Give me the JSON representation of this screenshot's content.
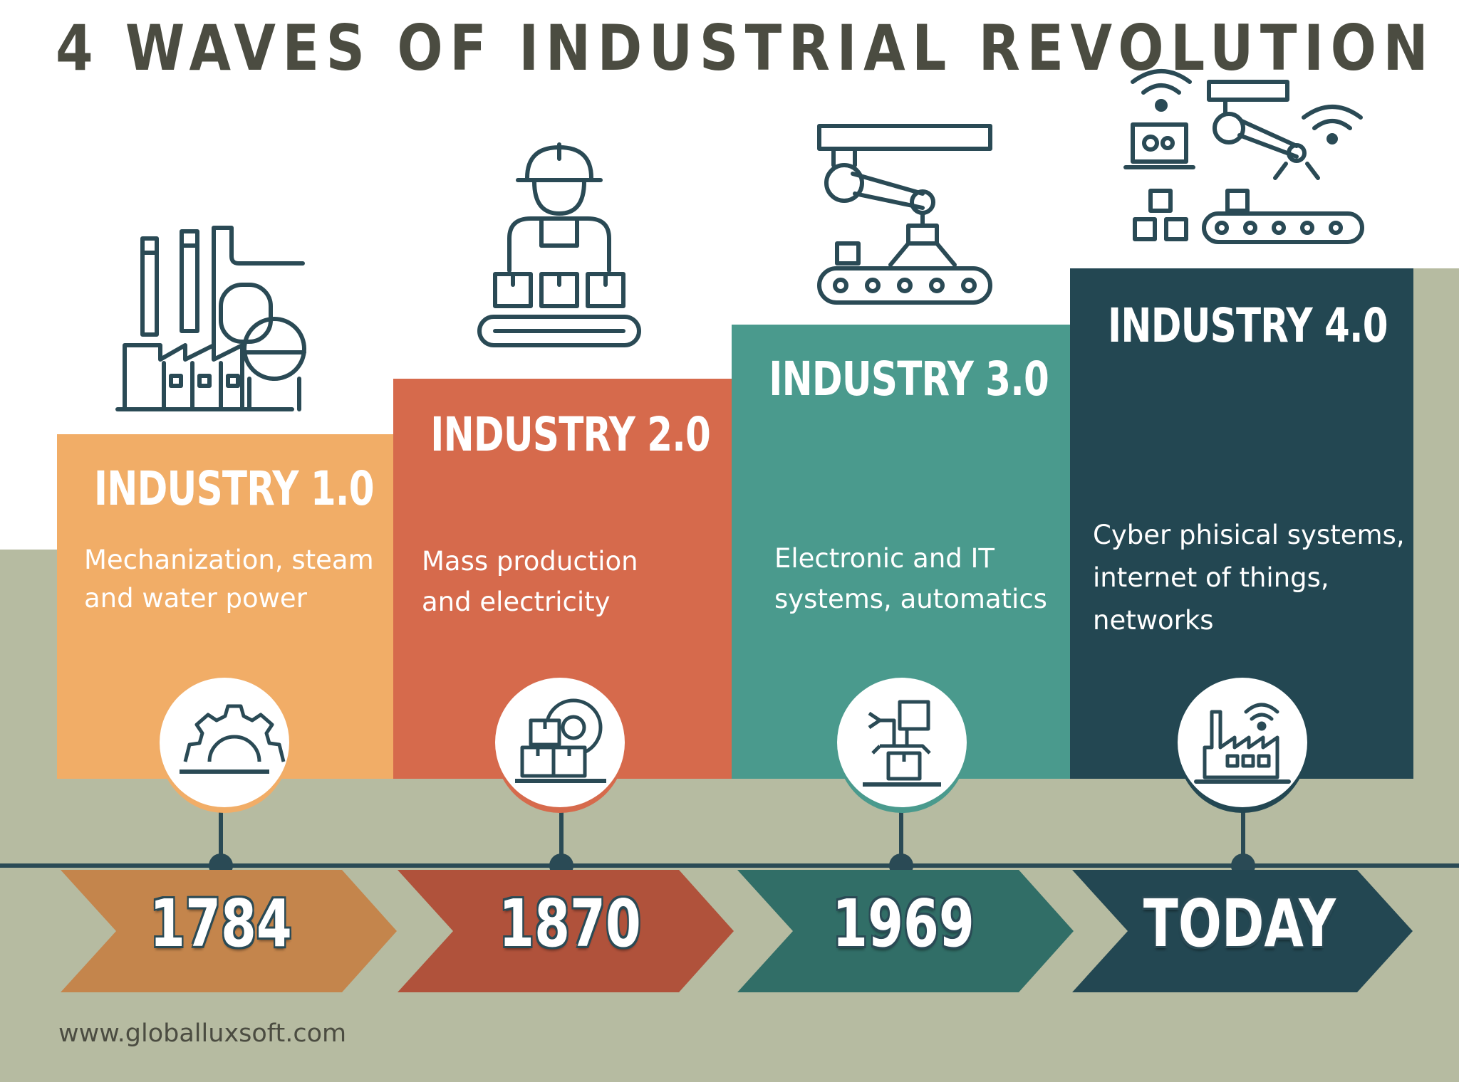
{
  "title": "4 WAVES OF INDUSTRIAL REVOLUTION",
  "colors": {
    "industry_1": "#f1ad67",
    "industry_2": "#d66a4c",
    "industry_3": "#4a9a8d",
    "industry_4": "#234752",
    "timeline_1": "#c4854c",
    "timeline_2": "#b0523b",
    "timeline_3": "#316e67",
    "timeline_4": "#234752",
    "background_band": "#b6bba1",
    "line": "#2a4a55"
  },
  "waves": [
    {
      "heading": "INDUSTRY 1.0",
      "description": "Mechanization, steam\nand water power",
      "year": "1784",
      "illustration": "factory-icon",
      "badge_icon": "gear-icon"
    },
    {
      "heading": "INDUSTRY 2.0",
      "description": "Mass production\nand electricity",
      "year": "1870",
      "illustration": "worker-conveyor-icon",
      "badge_icon": "boxes-gear-icon"
    },
    {
      "heading": "INDUSTRY 3.0",
      "description": "Electronic and IT\nsystems, automatics",
      "year": "1969",
      "illustration": "robotic-arm-conveyor-icon",
      "badge_icon": "robot-gripper-icon"
    },
    {
      "heading": "INDUSTRY 4.0",
      "description": "Cyber phisical systems,\ninternet of things,\nnetworks",
      "year": "TODAY",
      "illustration": "smart-factory-icon",
      "badge_icon": "wireless-factory-icon"
    }
  ],
  "footer": "www.globalluxsoft.com"
}
